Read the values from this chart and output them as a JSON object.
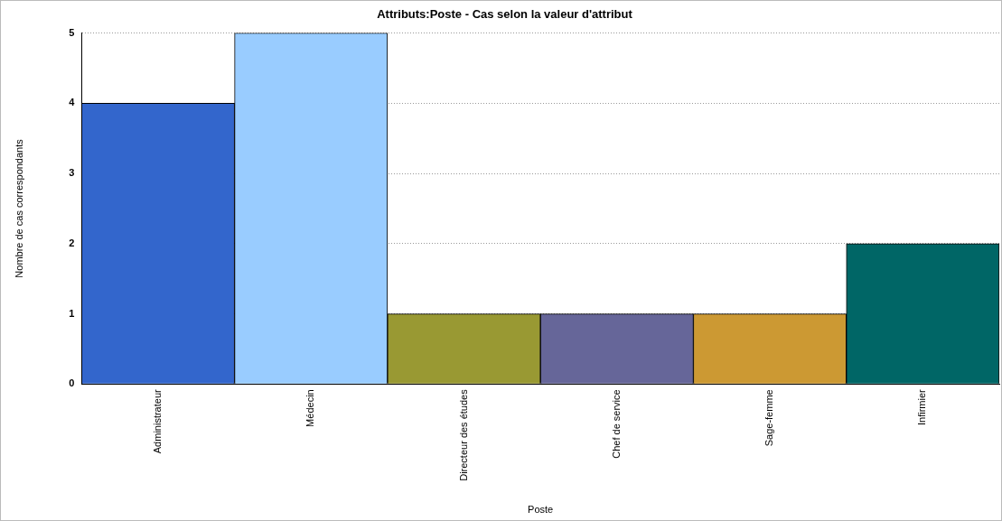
{
  "chart_data": {
    "type": "bar",
    "title": "Attributs:Poste - Cas selon la valeur d'attribut",
    "xlabel": "Poste",
    "ylabel": "Nombre de cas correspondants",
    "categories": [
      "Administrateur",
      "Médecin",
      "Directeur des études",
      "Chef de service",
      "Sage-femme",
      "Infirmier"
    ],
    "values": [
      4,
      5,
      1,
      1,
      1,
      2
    ],
    "colors": [
      "#3366cc",
      "#99ccff",
      "#999933",
      "#666699",
      "#cc9933",
      "#006666"
    ],
    "ylim": [
      0,
      5
    ],
    "yticks": [
      0,
      1,
      2,
      3,
      4,
      5
    ],
    "grid": "y",
    "legend": false
  }
}
